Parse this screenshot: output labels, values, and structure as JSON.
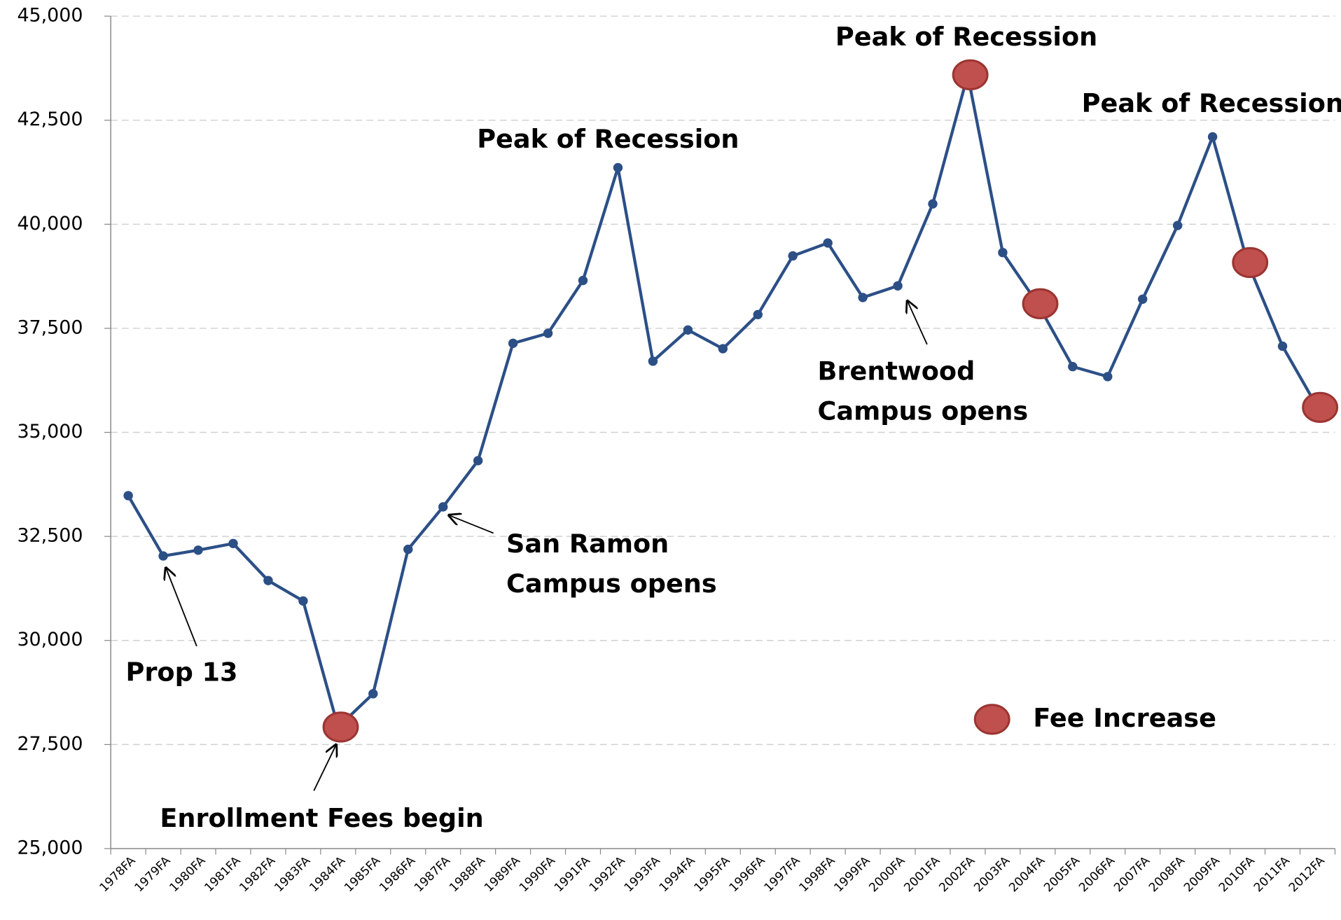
{
  "chart_data": {
    "type": "line",
    "categories": [
      "1978FA",
      "1979FA",
      "1980FA",
      "1981FA",
      "1982FA",
      "1983FA",
      "1984FA",
      "1985FA",
      "1986FA",
      "1987FA",
      "1988FA",
      "1989FA",
      "1990FA",
      "1991FA",
      "1992FA",
      "1993FA",
      "1994FA",
      "1995FA",
      "1996FA",
      "1997FA",
      "1998FA",
      "1999FA",
      "2000FA",
      "2001FA",
      "2002FA",
      "2003FA",
      "2004FA",
      "2005FA",
      "2006FA",
      "2007FA",
      "2008FA",
      "2009FA",
      "2010FA",
      "2011FA",
      "2012FA"
    ],
    "series": [
      {
        "color": "#2c4f86",
        "values": [
          33480,
          32030,
          32170,
          32330,
          31440,
          30950,
          27920,
          28720,
          32190,
          33210,
          34320,
          37140,
          37380,
          38650,
          41360,
          36710,
          37460,
          37010,
          37830,
          39240,
          39550,
          38240,
          38520,
          40490,
          43590,
          39320,
          38090,
          36580,
          36340,
          38200,
          39970,
          42100,
          39080,
          37070,
          35600
        ]
      },
      {
        "name": "Fee Increase",
        "color": "#c0504d",
        "values": [
          null,
          null,
          null,
          null,
          null,
          null,
          27920,
          null,
          null,
          null,
          null,
          null,
          null,
          null,
          null,
          null,
          null,
          null,
          null,
          null,
          null,
          null,
          null,
          null,
          43590,
          null,
          38090,
          null,
          null,
          null,
          null,
          null,
          39080,
          null,
          35600
        ]
      }
    ],
    "ylim": [
      25000,
      45000
    ],
    "yticks": [
      {
        "value": 25000,
        "label": "25,000"
      },
      {
        "value": 27500,
        "label": "27,500"
      },
      {
        "value": 30000,
        "label": "30,000"
      },
      {
        "value": 32500,
        "label": "32,500"
      },
      {
        "value": 35000,
        "label": "35,000"
      },
      {
        "value": 37500,
        "label": "37,500"
      },
      {
        "value": 40000,
        "label": "40,000"
      },
      {
        "value": 42500,
        "label": "42,500"
      },
      {
        "value": 45000,
        "label": "45,000"
      }
    ],
    "grid": true,
    "legend": "lower right",
    "annotations": [
      {
        "text": [
          "Peak of Recession"
        ]
      },
      {
        "text": [
          "Peak of Recession"
        ]
      },
      {
        "text": [
          "Peak of Recession"
        ]
      },
      {
        "text": [
          "Prop 13"
        ]
      },
      {
        "text": [
          "Enrollment Fees begin"
        ]
      },
      {
        "text": [
          "San Ramon",
          "Campus opens"
        ]
      },
      {
        "text": [
          "Brentwood",
          "Campus opens"
        ]
      }
    ]
  }
}
